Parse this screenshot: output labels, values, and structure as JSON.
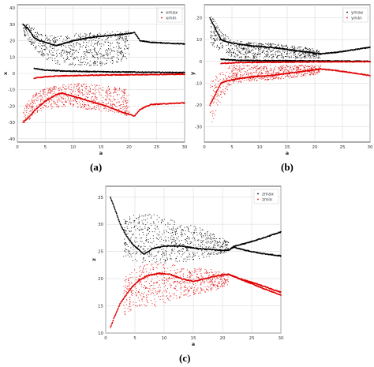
{
  "chart_data": [
    {
      "type": "scatter",
      "caption": "(a)",
      "xlabel": "a",
      "ylabel": "x",
      "xlim": [
        0,
        30
      ],
      "ylim": [
        -42,
        42
      ],
      "xticks": [
        "0",
        "5",
        "10",
        "15",
        "20",
        "25",
        "30"
      ],
      "xtick_values": [
        0,
        5,
        10,
        15,
        20,
        25,
        30
      ],
      "yticks": [
        "40",
        "30",
        "20",
        "10",
        "0",
        "-10",
        "-20",
        "-30",
        "-40"
      ],
      "ytick_values": [
        40,
        30,
        20,
        10,
        0,
        -10,
        -20,
        -30,
        -40
      ],
      "grid": true,
      "legend_position": "top-right",
      "series": [
        {
          "name": "xmax",
          "color": "#000000",
          "chaotic_envelope": [
            [
              1,
              24,
              32
            ],
            [
              3,
              15,
              28
            ],
            [
              5,
              9,
              24
            ],
            [
              7,
              6,
              23
            ],
            [
              9,
              5,
              24
            ],
            [
              11,
              5,
              25
            ],
            [
              13,
              5,
              25
            ],
            [
              15,
              5,
              25
            ],
            [
              17,
              6,
              26
            ],
            [
              19,
              8,
              26
            ],
            [
              20,
              9,
              27
            ]
          ],
          "periodic_branches": [
            [
              [
                1,
                30
              ],
              [
                2,
                27
              ],
              [
                3,
                22
              ],
              [
                4,
                20
              ],
              [
                5,
                19
              ],
              [
                6,
                18
              ],
              [
                7,
                17
              ],
              [
                8,
                18
              ],
              [
                10,
                20
              ],
              [
                13,
                22
              ],
              [
                16,
                23
              ],
              [
                19,
                24
              ],
              [
                21,
                25
              ],
              [
                22,
                20
              ],
              [
                24,
                19
              ],
              [
                30,
                18
              ]
            ],
            [
              [
                3,
                3
              ],
              [
                5,
                2
              ],
              [
                8,
                1.5
              ],
              [
                12,
                1.2
              ],
              [
                16,
                1
              ],
              [
                21,
                0.8
              ],
              [
                30,
                0.5
              ]
            ]
          ]
        },
        {
          "name": "xmin",
          "color": "#e00000",
          "chaotic_envelope": [
            [
              1,
              -32,
              -20
            ],
            [
              3,
              -25,
              -12
            ],
            [
              5,
              -22,
              -9
            ],
            [
              7,
              -21,
              -7
            ],
            [
              9,
              -20,
              -6
            ],
            [
              11,
              -21,
              -6
            ],
            [
              13,
              -22,
              -6
            ],
            [
              15,
              -23,
              -7
            ],
            [
              17,
              -24,
              -8
            ],
            [
              19,
              -25,
              -9
            ],
            [
              20,
              -26,
              -10
            ]
          ],
          "periodic_branches": [
            [
              [
                1,
                -30
              ],
              [
                2,
                -27
              ],
              [
                3,
                -23
              ],
              [
                4,
                -20
              ],
              [
                5,
                -17
              ],
              [
                6,
                -15
              ],
              [
                7,
                -13
              ],
              [
                8,
                -12
              ],
              [
                10,
                -14
              ],
              [
                13,
                -17
              ],
              [
                16,
                -20
              ],
              [
                19,
                -24
              ],
              [
                21,
                -26
              ],
              [
                22,
                -22
              ],
              [
                24,
                -19
              ],
              [
                30,
                -18
              ]
            ],
            [
              [
                3,
                -3
              ],
              [
                5,
                -2
              ],
              [
                8,
                -1.5
              ],
              [
                12,
                -1.2
              ],
              [
                16,
                -1
              ],
              [
                21,
                -0.8
              ],
              [
                30,
                -0.5
              ]
            ]
          ]
        }
      ]
    },
    {
      "type": "scatter",
      "caption": "(b)",
      "xlabel": "a",
      "ylabel": "y",
      "xlim": [
        0,
        30
      ],
      "ylim": [
        -37,
        26
      ],
      "xticks": [
        "0",
        "5",
        "10",
        "15",
        "20",
        "25",
        "30"
      ],
      "xtick_values": [
        0,
        5,
        10,
        15,
        20,
        25,
        30
      ],
      "yticks": [
        "20",
        "10",
        "0",
        "-10",
        "-20",
        "-30"
      ],
      "ytick_values": [
        20,
        10,
        0,
        -10,
        -20,
        -30
      ],
      "grid": true,
      "legend_position": "top-right",
      "series": [
        {
          "name": "ymax",
          "color": "#000000",
          "chaotic_envelope": [
            [
              1,
              8,
              22
            ],
            [
              3,
              5,
              14
            ],
            [
              5,
              2,
              10
            ],
            [
              8,
              1.5,
              9
            ],
            [
              11,
              1.5,
              8.5
            ],
            [
              14,
              1.5,
              8
            ],
            [
              17,
              1.5,
              7
            ],
            [
              20,
              1.5,
              6
            ],
            [
              21,
              1.5,
              5
            ]
          ],
          "periodic_branches": [
            [
              [
                1,
                20
              ],
              [
                2,
                15
              ],
              [
                3,
                10
              ],
              [
                4,
                9
              ],
              [
                6,
                8
              ],
              [
                9,
                7
              ],
              [
                12,
                6.5
              ],
              [
                15,
                5.5
              ],
              [
                18,
                4.5
              ],
              [
                21,
                3.5
              ],
              [
                24,
                4.2
              ],
              [
                27,
                5.3
              ],
              [
                30,
                6.5
              ]
            ],
            [
              [
                3,
                1
              ],
              [
                6,
                0.5
              ],
              [
                10,
                0.4
              ],
              [
                15,
                0.3
              ],
              [
                21,
                0.2
              ],
              [
                30,
                0.1
              ]
            ]
          ]
        },
        {
          "name": "ymin",
          "color": "#e00000",
          "chaotic_envelope": [
            [
              1,
              -30,
              -8
            ],
            [
              3,
              -18,
              -4
            ],
            [
              5,
              -10,
              -1.5
            ],
            [
              8,
              -9,
              -1.5
            ],
            [
              11,
              -8.5,
              -1.5
            ],
            [
              14,
              -8,
              -1.5
            ],
            [
              17,
              -7,
              -1.5
            ],
            [
              20,
              -6,
              -1.5
            ],
            [
              21,
              -5,
              -1.5
            ]
          ],
          "periodic_branches": [
            [
              [
                1,
                -20
              ],
              [
                2,
                -15
              ],
              [
                3,
                -10
              ],
              [
                4,
                -9
              ],
              [
                6,
                -8
              ],
              [
                9,
                -7
              ],
              [
                12,
                -6.5
              ],
              [
                15,
                -5.5
              ],
              [
                18,
                -4.5
              ],
              [
                21,
                -3.5
              ],
              [
                24,
                -4.2
              ],
              [
                27,
                -5.3
              ],
              [
                30,
                -6.5
              ]
            ],
            [
              [
                3,
                -1
              ],
              [
                6,
                -0.5
              ],
              [
                10,
                -0.4
              ],
              [
                15,
                -0.3
              ],
              [
                21,
                -0.2
              ],
              [
                30,
                -0.1
              ]
            ]
          ]
        }
      ]
    },
    {
      "type": "scatter",
      "caption": "(c)",
      "xlabel": "a",
      "ylabel": "z",
      "xlim": [
        0,
        30
      ],
      "ylim": [
        10,
        37
      ],
      "xticks": [
        "0",
        "5",
        "10",
        "15",
        "20",
        "25",
        "30"
      ],
      "xtick_values": [
        0,
        5,
        10,
        15,
        20,
        25,
        30
      ],
      "yticks": [
        "35",
        "30",
        "25",
        "20",
        "15",
        "10"
      ],
      "ytick_values": [
        35,
        30,
        25,
        20,
        15,
        10
      ],
      "grid": true,
      "legend_position": "top-right",
      "series": [
        {
          "name": "zmax",
          "color": "#000000",
          "chaotic_envelope": [
            [
              3,
              24,
              31
            ],
            [
              5,
              23,
              32
            ],
            [
              7,
              23,
              32
            ],
            [
              9,
              23,
              32
            ],
            [
              11,
              23,
              31
            ],
            [
              13,
              23,
              30
            ],
            [
              15,
              23.5,
              30
            ],
            [
              17,
              24,
              29
            ],
            [
              19,
              24.5,
              28
            ],
            [
              21,
              25,
              27
            ]
          ],
          "periodic_branches": [
            [
              [
                0.8,
                35
              ],
              [
                1.5,
                33
              ],
              [
                2.5,
                30
              ],
              [
                3.5,
                28
              ],
              [
                4.5,
                26.5
              ],
              [
                5.5,
                25.5
              ],
              [
                6.5,
                24.5
              ],
              [
                8,
                25.5
              ],
              [
                10,
                26
              ],
              [
                13,
                26
              ],
              [
                16,
                25.5
              ],
              [
                19,
                25.3
              ],
              [
                21,
                25.2
              ],
              [
                22,
                26
              ],
              [
                24,
                26.5
              ],
              [
                27,
                27.5
              ],
              [
                30,
                28.6
              ]
            ],
            [
              [
                21,
                25.2
              ],
              [
                22,
                25.8
              ],
              [
                24,
                25.2
              ],
              [
                27,
                24.6
              ],
              [
                30,
                24.2
              ]
            ]
          ]
        },
        {
          "name": "zmin",
          "color": "#e00000",
          "chaotic_envelope": [
            [
              3,
              13,
              20
            ],
            [
              5,
              15,
              22
            ],
            [
              7,
              15,
              23
            ],
            [
              9,
              15,
              23
            ],
            [
              11,
              16,
              23
            ],
            [
              13,
              16.5,
              22
            ],
            [
              15,
              17,
              22
            ],
            [
              17,
              17.5,
              22
            ],
            [
              19,
              18,
              21.5
            ],
            [
              21,
              19,
              21
            ]
          ],
          "periodic_branches": [
            [
              [
                0.8,
                11
              ],
              [
                1.5,
                13
              ],
              [
                2.5,
                15.5
              ],
              [
                3.5,
                17
              ],
              [
                4.5,
                18.5
              ],
              [
                5.5,
                19.5
              ],
              [
                7,
                20.5
              ],
              [
                9,
                21
              ],
              [
                11,
                20.8
              ],
              [
                13,
                20
              ],
              [
                15,
                19.5
              ],
              [
                17,
                20
              ],
              [
                19,
                20.5
              ],
              [
                21,
                20.8
              ],
              [
                24,
                19.5
              ],
              [
                27,
                18.2
              ],
              [
                30,
                17
              ]
            ],
            [
              [
                21,
                20.8
              ],
              [
                23,
                20
              ],
              [
                26,
                19
              ],
              [
                30,
                17.5
              ]
            ]
          ]
        }
      ]
    }
  ]
}
